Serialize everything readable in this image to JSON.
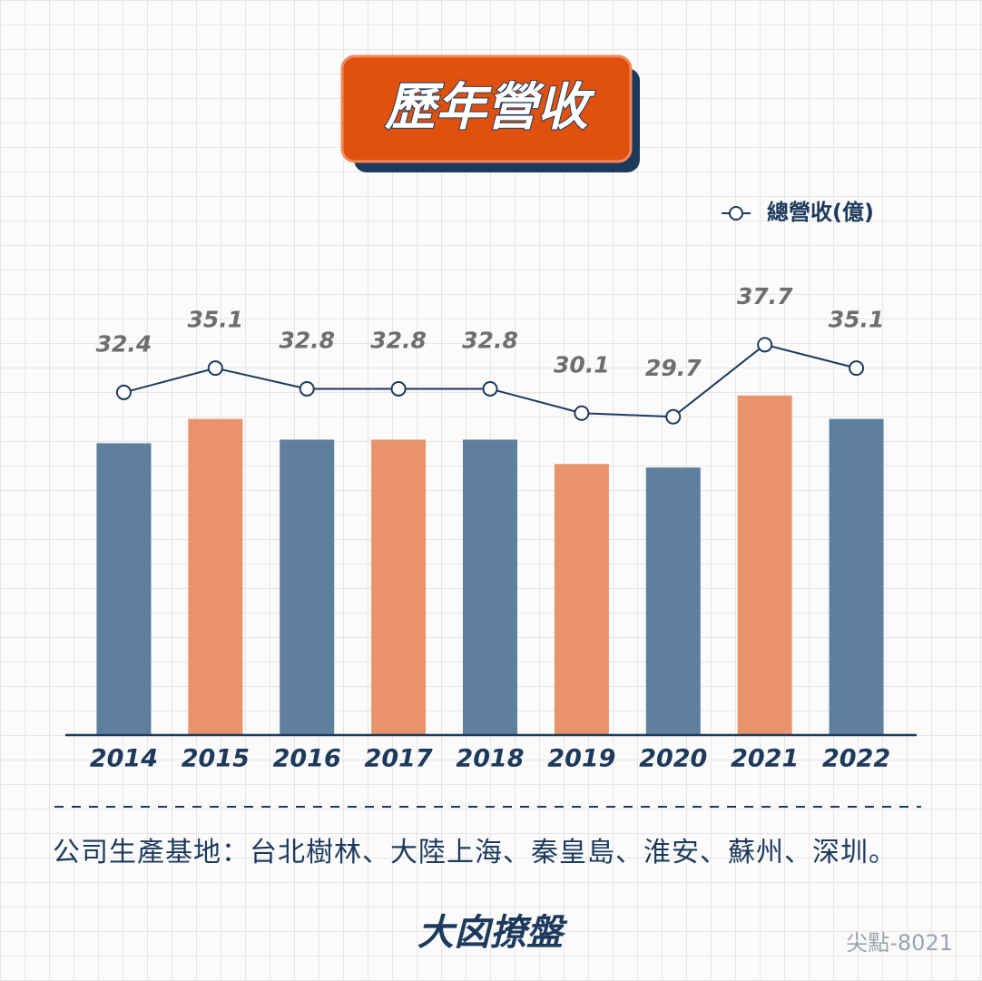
{
  "chart_data": {
    "type": "bar-line",
    "title": "歷年營收",
    "categories": [
      "2014",
      "2015",
      "2016",
      "2017",
      "2018",
      "2019",
      "2020",
      "2021",
      "2022"
    ],
    "series": [
      {
        "name": "總營收(億)",
        "color": "#1d3a5c",
        "values": [
          32.4,
          35.1,
          32.8,
          32.8,
          32.8,
          30.1,
          29.7,
          37.7,
          35.1
        ]
      }
    ],
    "bar_colors": [
      "#5f7f9f",
      "#e8936a",
      "#5f7f9f",
      "#e8936a",
      "#5f7f9f",
      "#e8936a",
      "#5f7f9f",
      "#e8936a",
      "#5f7f9f"
    ],
    "ylim": [
      0,
      40
    ],
    "footnote": "公司生產基地：台北樹林、大陸上海、秦皇島、淮安、蘇州、深圳。",
    "logo": "大囟撩盤",
    "watermark": "尖點-8021"
  }
}
